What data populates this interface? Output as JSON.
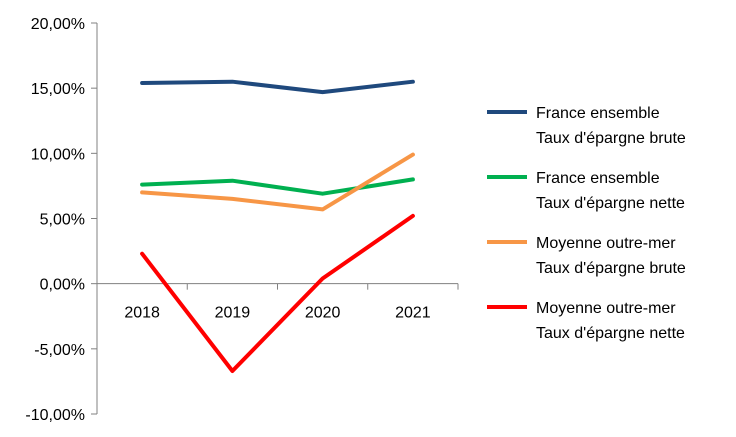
{
  "chart_data": {
    "type": "line",
    "title": "",
    "xlabel": "",
    "ylabel": "",
    "categories": [
      "2018",
      "2019",
      "2020",
      "2021"
    ],
    "ylim": [
      -0.1,
      0.2
    ],
    "ytick_values": [
      0.2,
      0.15,
      0.1,
      0.05,
      0.0,
      -0.05,
      -0.1
    ],
    "ytick_labels": [
      "20,00%",
      "15,00%",
      "10,00%",
      "5,00%",
      "0,00%",
      "-5,00%",
      "-10,00%"
    ],
    "grid": "none",
    "legend_position": "right",
    "series": [
      {
        "name_line1": "France ensemble",
        "name_line2": "Taux d'épargne brute",
        "color": "#1f497d",
        "values": [
          0.154,
          0.155,
          0.147,
          0.155
        ]
      },
      {
        "name_line1": "France ensemble",
        "name_line2": "Taux d'épargne nette",
        "color": "#00b050",
        "values": [
          0.076,
          0.079,
          0.069,
          0.08
        ]
      },
      {
        "name_line1": "Moyenne outre-mer",
        "name_line2": "Taux d'épargne brute",
        "color": "#f79646",
        "values": [
          0.07,
          0.065,
          0.057,
          0.099
        ]
      },
      {
        "name_line1": "Moyenne outre-mer",
        "name_line2": "Taux d'épargne nette",
        "color": "#ff0000",
        "values": [
          0.023,
          -0.067,
          0.004,
          0.052
        ]
      }
    ]
  }
}
